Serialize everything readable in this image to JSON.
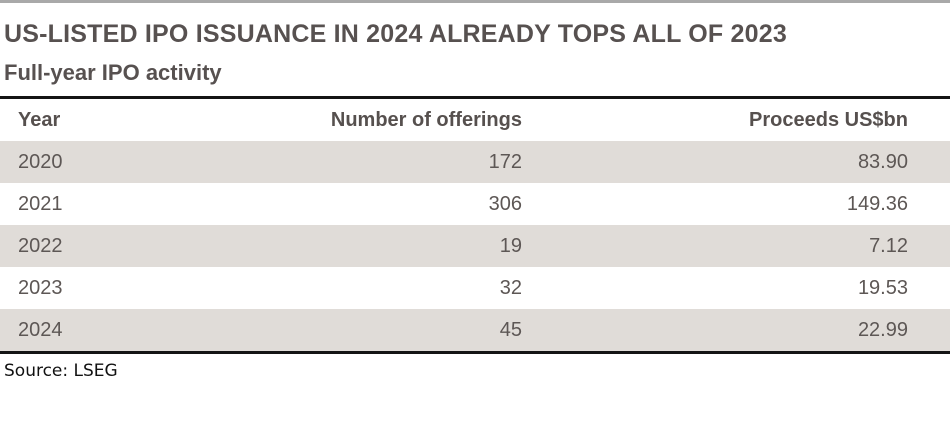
{
  "page": {
    "title": "US-LISTED IPO ISSUANCE IN 2024 ALREADY TOPS ALL OF 2023",
    "subtitle": "Full-year IPO activity",
    "source_text": "Source: LSEG"
  },
  "chart_data": {
    "type": "table",
    "title": "US-LISTED IPO ISSUANCE IN 2024 ALREADY TOPS ALL OF 2023",
    "subtitle": "Full-year IPO activity",
    "columns": [
      "Year",
      "Number of offerings",
      "Proceeds US$bn"
    ],
    "rows": [
      [
        "2020",
        "172",
        "83.90"
      ],
      [
        "2021",
        "306",
        "149.36"
      ],
      [
        "2022",
        "19",
        "7.12"
      ],
      [
        "2023",
        "32",
        "19.53"
      ],
      [
        "2024",
        "45",
        "22.99"
      ]
    ],
    "source": "Source: LSEG",
    "layout": {
      "striped": true,
      "shaded_row_indexes": [
        0,
        2,
        4
      ],
      "column_alignment": [
        "left",
        "right",
        "right"
      ]
    }
  },
  "colors": {
    "text": "#575150",
    "row_shade": "#e0dcd8",
    "top_bar": "#a9a9a9",
    "rule": "#141414",
    "source_text": "#111111"
  }
}
